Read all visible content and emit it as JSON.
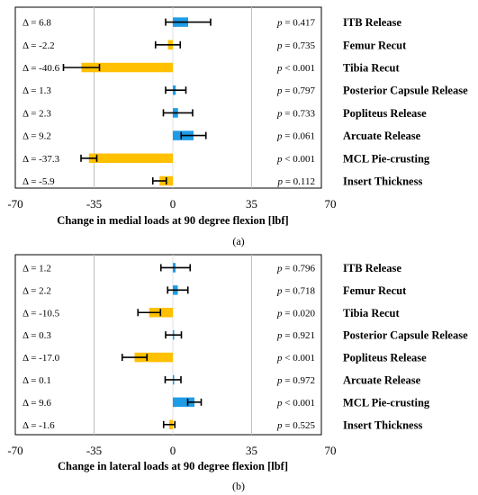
{
  "colors": {
    "positive": "#1e9ce6",
    "negative": "#ffc000",
    "error": "#000000",
    "grid": "#bfbfbf",
    "border": "#000000"
  },
  "chart_data": [
    {
      "type": "bar",
      "orientation": "horizontal",
      "caption": "(a)",
      "xlabel": "Change in medial loads at 90 degree flexion [lbf]",
      "xlim": [
        -70,
        70
      ],
      "xticks": [
        "-70",
        "-35",
        "0",
        "35",
        "70"
      ],
      "grid": "vertical gridlines at -35 and 35",
      "categories": [
        "ITB Release",
        "Femur Recut",
        "Tibia Recut",
        "Posterior Capsule Release",
        "Popliteus Release",
        "Arcuate Release",
        "MCL Pie-crusting",
        "Insert Thickness"
      ],
      "values": [
        6.8,
        -2.2,
        -40.6,
        1.3,
        2.3,
        9.2,
        -37.3,
        -5.9
      ],
      "errors": [
        10,
        5.5,
        8,
        4.5,
        6.5,
        5.5,
        3.5,
        3
      ],
      "delta_labels": [
        "Δ = 6.8",
        "Δ = -2.2",
        "Δ = -40.6",
        "Δ = 1.3",
        "Δ = 2.3",
        "Δ = 9.2",
        "Δ = -37.3",
        "Δ = -5.9"
      ],
      "p_labels": [
        "= 0.417",
        "= 0.735",
        "< 0.001",
        "= 0.797",
        "= 0.733",
        "= 0.061",
        "< 0.001",
        "= 0.112"
      ],
      "p_symbol": "p"
    },
    {
      "type": "bar",
      "orientation": "horizontal",
      "caption": "(b)",
      "xlabel": "Change in lateral loads at 90 degree flexion [lbf]",
      "xlim": [
        -70,
        70
      ],
      "xticks": [
        "-70",
        "-35",
        "0",
        "35",
        "70"
      ],
      "grid": "vertical gridlines at -35 and 35",
      "categories": [
        "ITB Release",
        "Femur Recut",
        "Tibia Recut",
        "Posterior Capsule Release",
        "Popliteus Release",
        "Arcuate Release",
        "MCL Pie-crusting",
        "Insert Thickness"
      ],
      "values": [
        1.2,
        2.2,
        -10.5,
        0.3,
        -17.0,
        0.1,
        9.6,
        -1.6
      ],
      "errors": [
        6.5,
        4.5,
        5,
        3.5,
        5.5,
        3.5,
        3,
        2.5
      ],
      "delta_labels": [
        "Δ = 1.2",
        "Δ = 2.2",
        "Δ = -10.5",
        "Δ = 0.3",
        "Δ = -17.0",
        "Δ = 0.1",
        "Δ = 9.6",
        "Δ = -1.6"
      ],
      "p_labels": [
        "= 0.796",
        "= 0.718",
        "= 0.020",
        "= 0.921",
        "< 0.001",
        "= 0.972",
        "< 0.001",
        "= 0.525"
      ],
      "p_symbol": "p"
    }
  ]
}
